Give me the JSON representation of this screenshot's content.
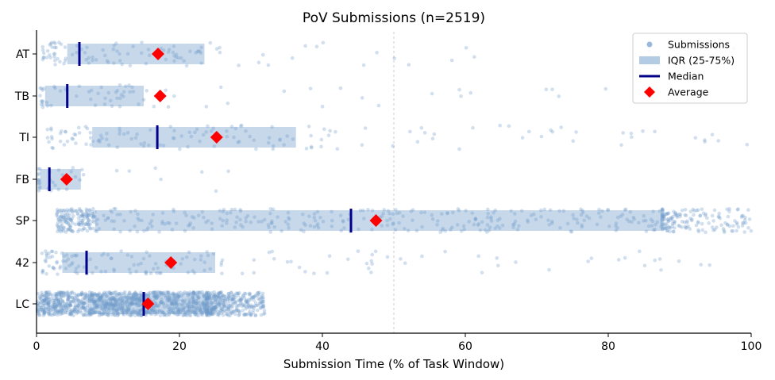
{
  "chart_data": {
    "type": "scatter",
    "title": "PoV Submissions (n=2519)",
    "xlabel": "Submission Time (% of Task Window)",
    "ylabel": "",
    "xlim": [
      0,
      100
    ],
    "xticks": [
      "0",
      "20",
      "40",
      "60",
      "80",
      "100"
    ],
    "reference_line_x": 50,
    "grid": false,
    "legend_position": "top-right",
    "legend": [
      "Submissions",
      "IQR (25-75%)",
      "Median",
      "Average"
    ],
    "colors": {
      "points": "#6f9ac9",
      "iqr": "#b3cbe3",
      "median": "#00008b",
      "average": "#ff0000",
      "refline": "#cccccc"
    },
    "categories": [
      "AT",
      "TB",
      "TI",
      "FB",
      "SP",
      "42",
      "LC"
    ],
    "stats": [
      {
        "category": "AT",
        "q1": 4.3,
        "q3": 23.5,
        "median": 6.0,
        "mean": 17.0,
        "min": 0.8,
        "max": 99.5
      },
      {
        "category": "TB",
        "q1": 1.2,
        "q3": 15.0,
        "median": 4.3,
        "mean": 17.3,
        "min": 0.5,
        "max": 80.0
      },
      {
        "category": "TI",
        "q1": 7.8,
        "q3": 36.3,
        "median": 16.9,
        "mean": 25.2,
        "min": 1.0,
        "max": 100.0
      },
      {
        "category": "FB",
        "q1": 0.5,
        "q3": 6.2,
        "median": 1.8,
        "mean": 4.2,
        "min": 0.2,
        "max": 32.5
      },
      {
        "category": "SP",
        "q1": 8.2,
        "q3": 87.5,
        "median": 44.0,
        "mean": 47.5,
        "min": 2.8,
        "max": 100.0
      },
      {
        "category": "42",
        "q1": 3.6,
        "q3": 25.0,
        "median": 7.0,
        "mean": 18.8,
        "min": 0.5,
        "max": 96.0
      },
      {
        "category": "LC",
        "q1": 7.2,
        "q3": 23.8,
        "median": 15.0,
        "mean": 15.6,
        "min": 0.1,
        "max": 32.0
      }
    ]
  }
}
